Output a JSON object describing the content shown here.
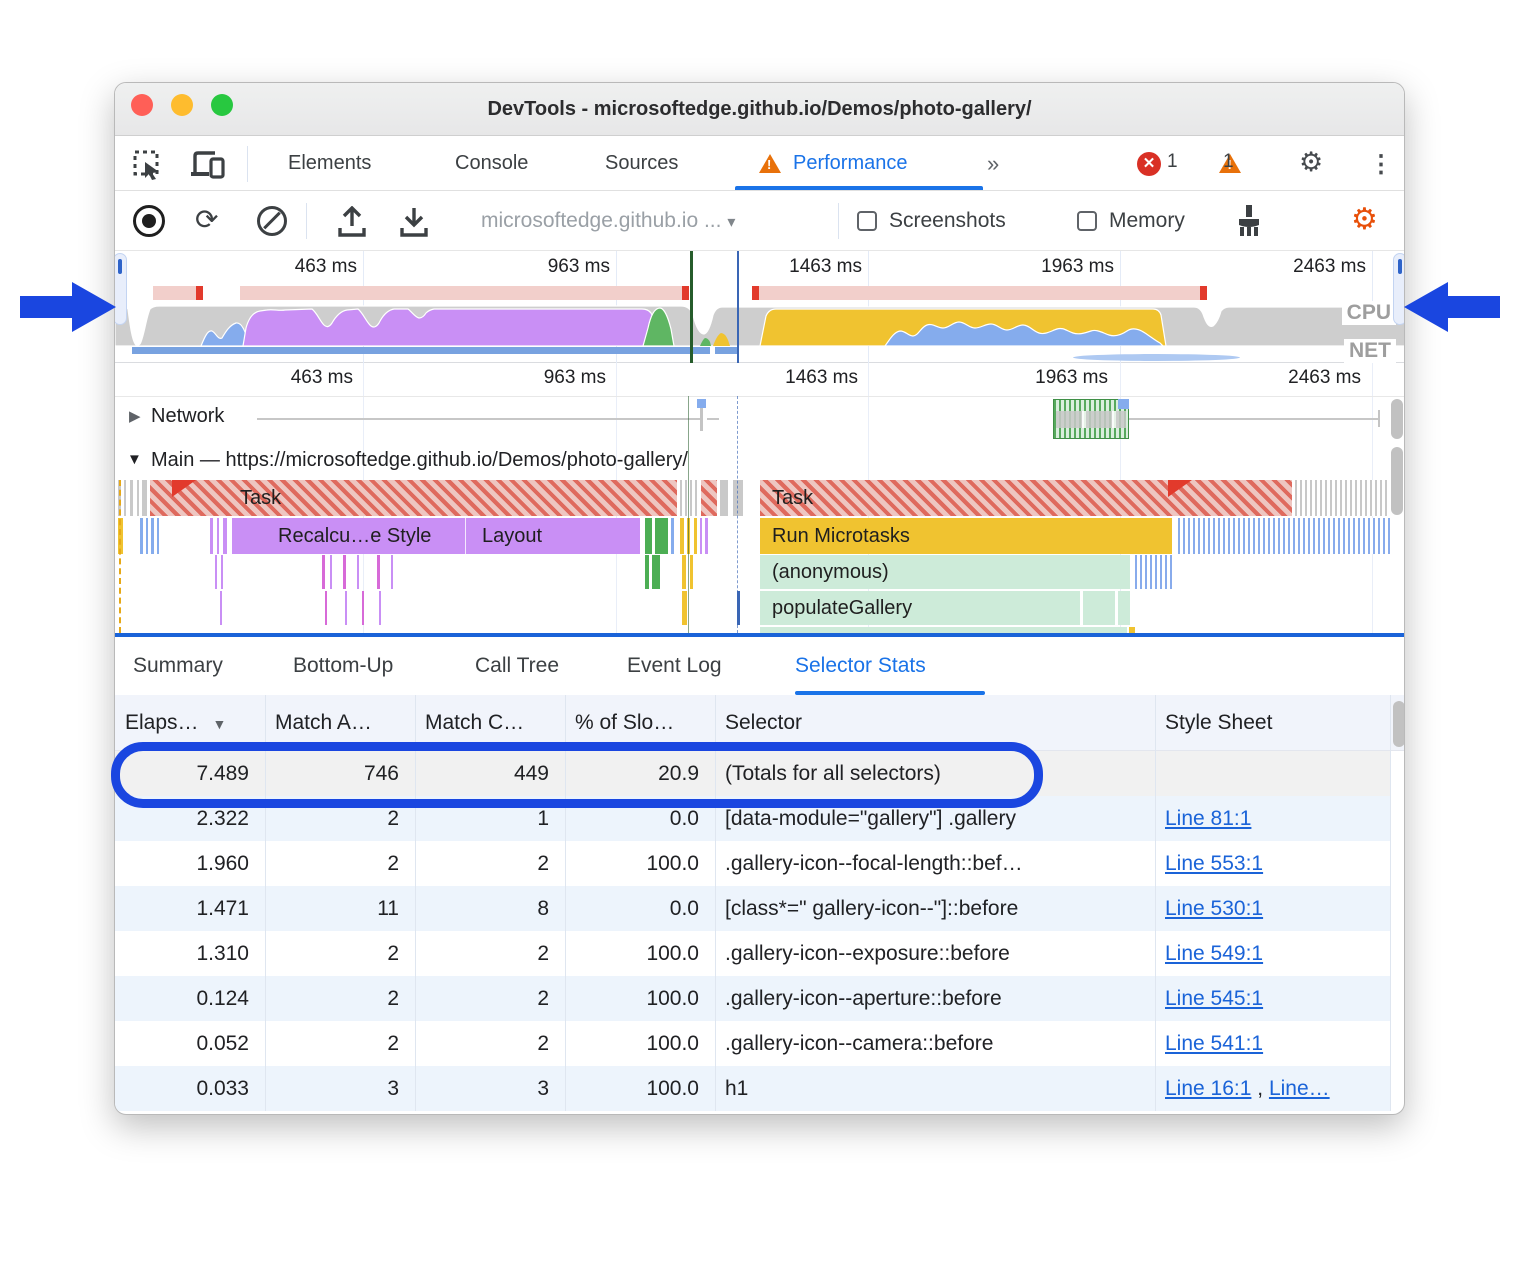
{
  "window": {
    "title": "DevTools - microsoftedge.github.io/Demos/photo-gallery/"
  },
  "tabbar": {
    "tabs": {
      "elements": "Elements",
      "console": "Console",
      "sources": "Sources",
      "performance": "Performance"
    },
    "more_tabs": "»",
    "error_count": "1",
    "warning_count": "1"
  },
  "toolbar": {
    "history": "microsoftedge.github.io ...",
    "history_caret": "▾",
    "screenshots_label": "Screenshots",
    "memory_label": "Memory"
  },
  "overview": {
    "time_labels": [
      "463 ms",
      "963 ms",
      "1463 ms",
      "1963 ms",
      "2463 ms"
    ],
    "cpu_label": "CPU",
    "net_label": "NET"
  },
  "timeline": {
    "ruler_labels": [
      "463 ms",
      "963 ms",
      "1463 ms",
      "1963 ms",
      "2463 ms"
    ],
    "network_label": "Network",
    "main_label": "Main — https://microsoftedge.github.io/Demos/photo-gallery/",
    "flame": {
      "task1": "Task",
      "task2": "Task",
      "recalc_style": "Recalcu…e Style",
      "layout": "Layout",
      "run_microtasks": "Run Microtasks",
      "anonymous": "(anonymous)",
      "populate_gallery": "populateGallery"
    }
  },
  "panel_tabs": [
    "Summary",
    "Bottom-Up",
    "Call Tree",
    "Event Log",
    "Selector Stats"
  ],
  "selected_panel_tab": "Selector Stats",
  "table": {
    "headers": [
      "Elaps…",
      "Match A…",
      "Match C…",
      "% of Slo…",
      "Selector",
      "Style Sheet"
    ],
    "rows": [
      {
        "elapsed": "7.489",
        "match_attempts": "746",
        "match_count": "449",
        "pct_slow": "20.9",
        "selector": "(Totals for all selectors)",
        "links": [],
        "highlight": true
      },
      {
        "elapsed": "2.322",
        "match_attempts": "2",
        "match_count": "1",
        "pct_slow": "0.0",
        "selector": "[data-module=\"gallery\"] .gallery",
        "links": [
          "Line 81:1"
        ]
      },
      {
        "elapsed": "1.960",
        "match_attempts": "2",
        "match_count": "2",
        "pct_slow": "100.0",
        "selector": ".gallery-icon--focal-length::bef…",
        "links": [
          "Line 553:1"
        ]
      },
      {
        "elapsed": "1.471",
        "match_attempts": "11",
        "match_count": "8",
        "pct_slow": "0.0",
        "selector": "[class*=\" gallery-icon--\"]::before",
        "links": [
          "Line 530:1"
        ]
      },
      {
        "elapsed": "1.310",
        "match_attempts": "2",
        "match_count": "2",
        "pct_slow": "100.0",
        "selector": ".gallery-icon--exposure::before",
        "links": [
          "Line 549:1"
        ]
      },
      {
        "elapsed": "0.124",
        "match_attempts": "2",
        "match_count": "2",
        "pct_slow": "100.0",
        "selector": ".gallery-icon--aperture::before",
        "links": [
          "Line 545:1"
        ]
      },
      {
        "elapsed": "0.052",
        "match_attempts": "2",
        "match_count": "2",
        "pct_slow": "100.0",
        "selector": ".gallery-icon--camera::before",
        "links": [
          "Line 541:1"
        ]
      },
      {
        "elapsed": "0.033",
        "match_attempts": "3",
        "match_count": "3",
        "pct_slow": "100.0",
        "selector": "h1",
        "links": [
          "Line 16:1",
          "Line…"
        ]
      }
    ]
  },
  "colors": {
    "accent_blue": "#1a73e8",
    "annotation_blue": "#1a46e0",
    "warning_orange": "#e8710a",
    "error_red": "#d93025",
    "cpu_purple": "#c98ff5",
    "cpu_yellow": "#f0c330",
    "cpu_green": "#5fb663",
    "cpu_blue": "#85aced",
    "mint_green": "#cdebd9",
    "task_red": "#df6a5e"
  }
}
